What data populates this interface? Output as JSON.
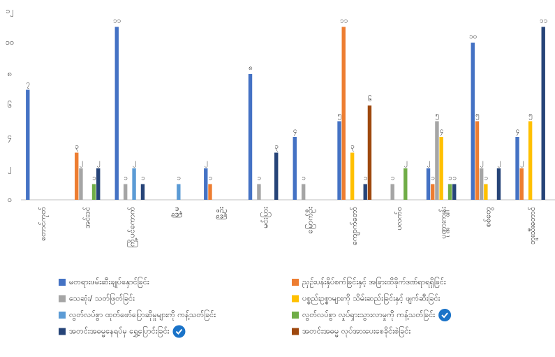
{
  "chart_data": {
    "type": "bar",
    "categories": [
      "တောင်ကုတ်",
      "အင်းဒင်",
      "ကြို့ပင်ကောက်",
      "မြို့မ",
      "မြို့ဦး",
      "မင်းပြား",
      "မြောက်ဦး",
      "ကျောက်တော်",
      "ပလက်ဝ",
      "ပုဏ္ဏားကျွန်း",
      "စစ်တွေ",
      "ဘူးသီးတောင်"
    ],
    "ylim": [
      0,
      12
    ],
    "yticks": [
      {
        "value": 0,
        "label": "၀"
      },
      {
        "value": 2,
        "label": "၂"
      },
      {
        "value": 4,
        "label": "၄"
      },
      {
        "value": 6,
        "label": "၆"
      },
      {
        "value": 8,
        "label": "၈"
      },
      {
        "value": 10,
        "label": "၁၀"
      },
      {
        "value": 12,
        "label": "၁၂"
      }
    ],
    "grid": false,
    "series": [
      {
        "name": "မတရားဖမ်းဆီးချုပ်နှောင်ခြင်း",
        "color": "#4472c4",
        "checked": false,
        "values": [
          7,
          null,
          11,
          null,
          2,
          8,
          4,
          5,
          null,
          2,
          10,
          4
        ],
        "value_labels": [
          "၇",
          null,
          "၁၁",
          null,
          "၂",
          "၈",
          "၄",
          "၅",
          null,
          "၂",
          "၁၀",
          "၄"
        ]
      },
      {
        "name": "ညှဉ်းပန်းနှိပ်စက်ခြင်းနှင့် အခြားထိခိုက်ဒဏ်ရာရရှိခြင်း",
        "color": "#ed7d31",
        "checked": false,
        "values": [
          null,
          3,
          null,
          null,
          1,
          null,
          null,
          11,
          null,
          1,
          5,
          2
        ],
        "value_labels": [
          null,
          "၃",
          null,
          null,
          "၁",
          null,
          null,
          "၁၁",
          null,
          "၁",
          "၅",
          "၂"
        ]
      },
      {
        "name": "သေဆုံး/ သတ်ဖြတ်ခြင်း",
        "color": "#a5a5a5",
        "checked": false,
        "values": [
          null,
          2,
          1,
          null,
          null,
          1,
          1,
          null,
          1,
          5,
          2,
          null
        ],
        "value_labels": [
          null,
          "၂",
          "၁",
          null,
          null,
          "၁",
          "၁",
          null,
          "၁",
          "၅",
          "၂",
          null
        ]
      },
      {
        "name": "ပစ္စည်းဥစ္စာများကို သိမ်းဆည်းခြင်းနှင့် ဖျက်ဆီးခြင်း",
        "color": "#ffc000",
        "checked": false,
        "values": [
          null,
          null,
          null,
          null,
          null,
          null,
          null,
          3,
          null,
          4,
          1,
          5
        ],
        "value_labels": [
          null,
          null,
          null,
          null,
          null,
          null,
          null,
          "၃",
          null,
          "၄",
          "၁",
          "၅"
        ]
      },
      {
        "name": "လွတ်လပ်စွာ ထုတ်ဖော်ပြောဆိုမှုများကို ကန့်သတ်ခြင်း",
        "color": "#5b9bd5",
        "checked": false,
        "values": [
          null,
          null,
          2,
          1,
          null,
          null,
          null,
          null,
          null,
          null,
          null,
          null
        ],
        "value_labels": [
          null,
          null,
          "၂",
          "၁",
          null,
          null,
          null,
          null,
          null,
          null,
          null,
          null
        ]
      },
      {
        "name": "လွတ်လပ်စွာ လှုပ်ရှားသွားလာမှုကို ကန့်သတ်ခြင်း",
        "color": "#70ad47",
        "checked": true,
        "values": [
          null,
          1,
          null,
          null,
          null,
          null,
          null,
          null,
          2,
          1,
          null,
          null
        ],
        "value_labels": [
          null,
          "၁",
          null,
          null,
          null,
          null,
          null,
          null,
          "၂",
          "၁",
          null,
          null
        ]
      },
      {
        "name": "အတင်းအဓမ္မနေရပ်မှ ရွှေ့ပြောင်းခြင်း",
        "color": "#264478",
        "checked": true,
        "values": [
          null,
          2,
          1,
          null,
          null,
          3,
          null,
          1,
          null,
          1,
          2,
          11
        ],
        "value_labels": [
          null,
          "၂",
          "၁",
          null,
          null,
          "၃",
          null,
          "၁",
          null,
          "၁",
          "၂",
          "၁၁"
        ]
      },
      {
        "name": "အတင်းအဓမ္မ လုပ်အားပေးစေခိုင်းစဲခြင်း",
        "color": "#9e480e",
        "checked": false,
        "values": [
          null,
          null,
          null,
          null,
          null,
          null,
          null,
          6,
          null,
          null,
          null,
          null
        ],
        "value_labels": [
          null,
          null,
          null,
          null,
          null,
          null,
          null,
          "၆",
          null,
          null,
          null,
          null
        ]
      }
    ]
  }
}
